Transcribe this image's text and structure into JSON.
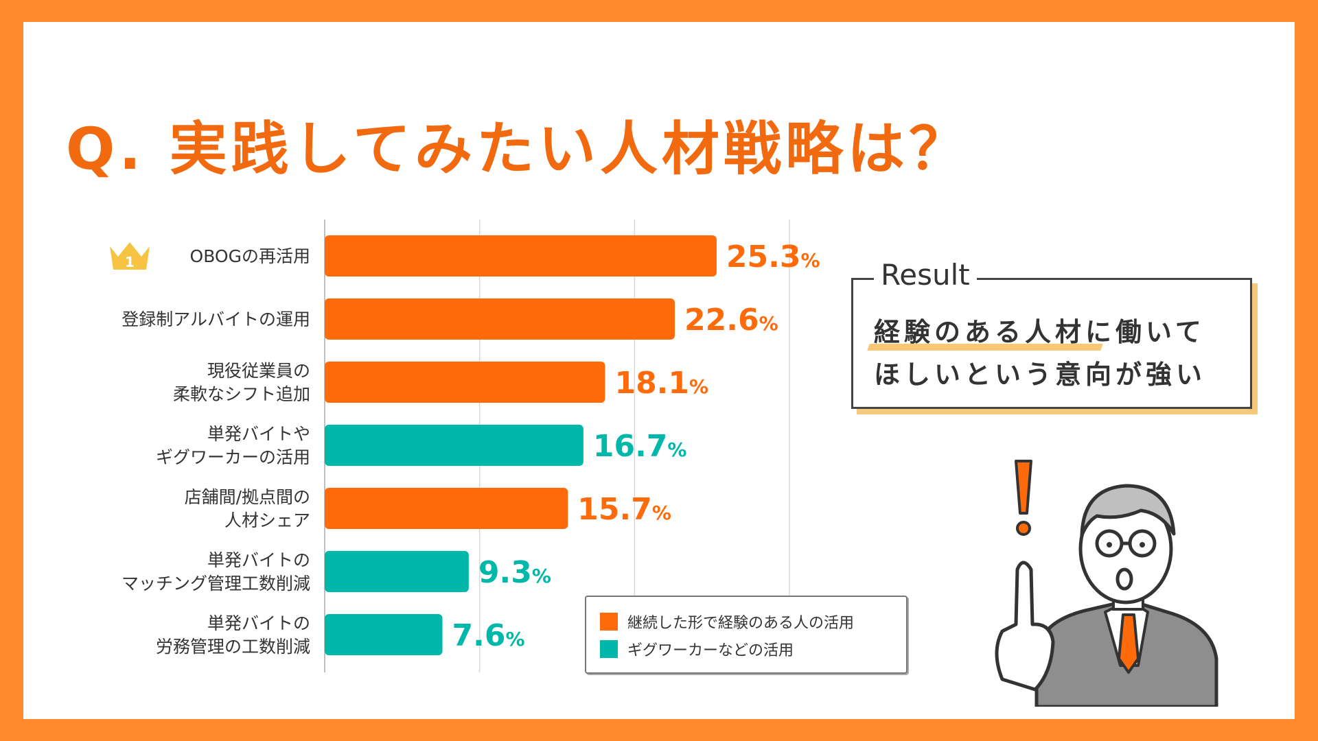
{
  "title": "Q. 実践してみたい人材戦略は？",
  "colors": {
    "background": "#ff8a2e",
    "orange": "#ff6b0a",
    "teal": "#00b8a9",
    "title": "#f26a10",
    "grid": "#d9d9d9",
    "crown": "#f6c343"
  },
  "chart_data": {
    "type": "bar",
    "orientation": "horizontal",
    "unit": "%",
    "xlim": [
      0,
      30
    ],
    "grid": true,
    "categories": [
      [
        "OBOGの再活用"
      ],
      [
        "登録制アルバイトの運用"
      ],
      [
        "現役従業員の",
        "柔軟なシフト追加"
      ],
      [
        "単発バイトや",
        "ギグワーカーの活用"
      ],
      [
        "店舗間/拠点間の",
        "人材シェア"
      ],
      [
        "単発バイトの",
        "マッチング管理工数削減"
      ],
      [
        "単発バイトの",
        "労務管理の工数削減"
      ]
    ],
    "values": [
      25.3,
      22.6,
      18.1,
      16.7,
      15.7,
      9.3,
      7.6
    ],
    "value_labels": [
      "25.3",
      "22.6",
      "18.1",
      "16.7",
      "15.7",
      "9.3",
      "7.6"
    ],
    "group": [
      "experienced",
      "experienced",
      "experienced",
      "gig",
      "experienced",
      "gig",
      "gig"
    ],
    "rank_badge": {
      "index": 0,
      "label": "1"
    }
  },
  "legend": {
    "placement": "bottom-center",
    "items": [
      {
        "key": "experienced",
        "label": "継続した形で経験のある人の活用",
        "color": "#ff6b0a"
      },
      {
        "key": "gig",
        "label": "ギグワーカーなどの活用",
        "color": "#00b8a9"
      }
    ]
  },
  "result": {
    "label": "Result",
    "lines": [
      "経験のある人材に働いて",
      "ほしいという意向が強い"
    ]
  },
  "icons": [
    "crown-icon",
    "exclamation-icon",
    "businessman-illustration"
  ]
}
